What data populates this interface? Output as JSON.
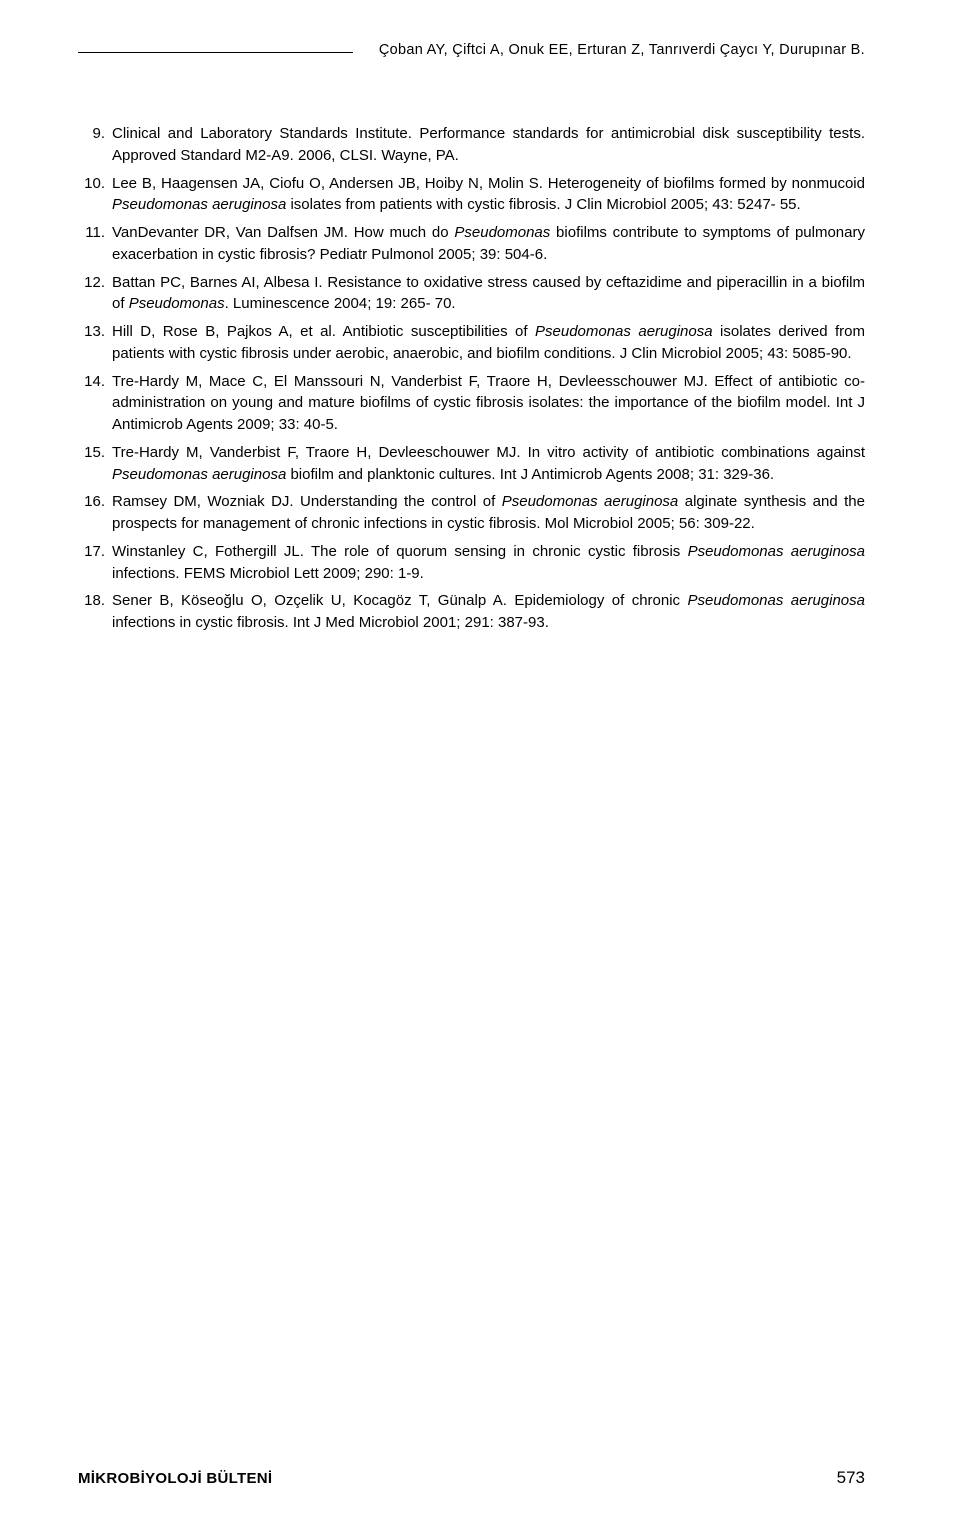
{
  "header": {
    "authors": "Çoban AY, Çiftci A, Onuk EE, Erturan Z, Tanrıverdi Çaycı Y, Durupınar B."
  },
  "references": [
    {
      "num": "9.",
      "parts": [
        {
          "t": "Clinical and Laboratory Standards Institute. Performance standards for antimicrobial disk susceptibility tests. Approved Standard M2-A9. 2006, CLSI. Wayne, PA.",
          "i": false
        }
      ]
    },
    {
      "num": "10.",
      "parts": [
        {
          "t": "Lee B, Haagensen JA, Ciofu O, Andersen JB, Hoiby N, Molin S. Heterogeneity of biofilms formed by nonmucoid ",
          "i": false
        },
        {
          "t": "Pseudomonas aeruginosa",
          "i": true
        },
        {
          "t": " isolates from patients with cystic fibrosis. J Clin Microbiol 2005; 43: 5247- 55.",
          "i": false
        }
      ]
    },
    {
      "num": "11.",
      "parts": [
        {
          "t": "VanDevanter DR, Van Dalfsen JM. How much do ",
          "i": false
        },
        {
          "t": "Pseudomonas",
          "i": true
        },
        {
          "t": " biofilms contribute to symptoms of pulmonary exacerbation in cystic fibrosis? Pediatr Pulmonol 2005; 39: 504-6.",
          "i": false
        }
      ]
    },
    {
      "num": "12.",
      "parts": [
        {
          "t": "Battan PC, Barnes AI, Albesa I. Resistance to oxidative stress caused by ceftazidime and piperacillin in a biofilm of ",
          "i": false
        },
        {
          "t": "Pseudomonas",
          "i": true
        },
        {
          "t": ". Luminescence 2004; 19: 265- 70.",
          "i": false
        }
      ]
    },
    {
      "num": "13.",
      "parts": [
        {
          "t": "Hill D, Rose B, Pajkos A, et al. Antibiotic susceptibilities of ",
          "i": false
        },
        {
          "t": "Pseudomonas aeruginosa",
          "i": true
        },
        {
          "t": " isolates derived from patients with cystic fibrosis under aerobic, anaerobic, and biofilm conditions. J Clin Microbiol 2005; 43: 5085-90.",
          "i": false
        }
      ]
    },
    {
      "num": "14.",
      "parts": [
        {
          "t": "Tre-Hardy M, Mace C, El Manssouri N, Vanderbist F, Traore H, Devleesschouwer MJ. Effect of antibiotic co-administration on young and mature biofilms of cystic fibrosis isolates: the importance of the biofilm model. Int J Antimicrob Agents 2009; 33: 40-5.",
          "i": false
        }
      ]
    },
    {
      "num": "15.",
      "parts": [
        {
          "t": "Tre-Hardy M, Vanderbist F, Traore H, Devleeschouwer MJ. In vitro activity of antibiotic combinations against ",
          "i": false
        },
        {
          "t": "Pseudomonas aeruginosa",
          "i": true
        },
        {
          "t": " biofilm and planktonic cultures. Int J Antimicrob Agents 2008; 31: 329-36.",
          "i": false
        }
      ]
    },
    {
      "num": "16.",
      "parts": [
        {
          "t": "Ramsey DM, Wozniak DJ. Understanding the control of ",
          "i": false
        },
        {
          "t": "Pseudomonas aeruginosa",
          "i": true
        },
        {
          "t": " alginate synthesis and the prospects for management of chronic infections in cystic fibrosis. Mol Microbiol 2005; 56: 309-22.",
          "i": false
        }
      ]
    },
    {
      "num": "17.",
      "parts": [
        {
          "t": "Winstanley C, Fothergill JL. The role of quorum sensing in chronic cystic fibrosis ",
          "i": false
        },
        {
          "t": "Pseudomonas aeruginosa",
          "i": true
        },
        {
          "t": " infections. FEMS Microbiol Lett 2009; 290: 1-9.",
          "i": false
        }
      ]
    },
    {
      "num": "18.",
      "parts": [
        {
          "t": "Sener B, Köseoğlu O, Ozçelik U, Kocagöz T, Günalp A. Epidemiology of chronic ",
          "i": false
        },
        {
          "t": "Pseudomonas aeruginosa",
          "i": true
        },
        {
          "t": " infections in cystic fibrosis. Int J Med Microbiol 2001; 291: 387-93.",
          "i": false
        }
      ]
    }
  ],
  "footer": {
    "title": "MİKROBİYOLOJİ BÜLTENİ",
    "page": "573"
  }
}
